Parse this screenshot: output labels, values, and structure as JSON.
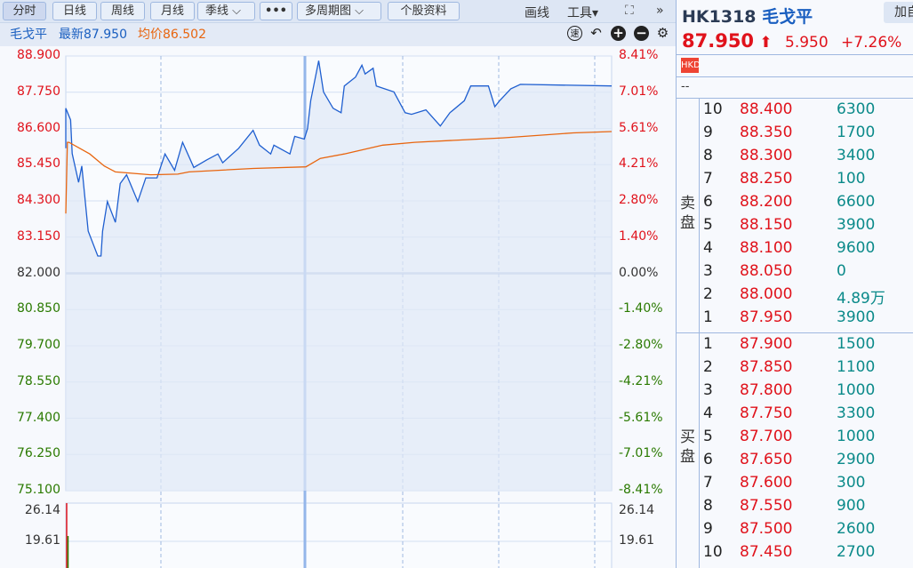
{
  "toolbar": {
    "tabs": [
      "分时",
      "日线",
      "周线",
      "月线",
      "季线",
      "•••",
      "多周期图",
      "个股资料"
    ],
    "draw": "画线",
    "tools": "工具▾",
    "fullscreen_icon": "expand-icon",
    "collapse_icon": "»"
  },
  "infobar": {
    "name": "毛戈平",
    "latest": "最新87.950",
    "avg": "均价86.502"
  },
  "stock": {
    "code": "HK1318",
    "name": "毛戈平",
    "add_btn": "加自",
    "price": "87.950",
    "arrow": "⬆",
    "change": "5.950",
    "pct": "+7.26%",
    "currency": "HKD",
    "misc": "--"
  },
  "chart": {
    "price_ticks": [
      "88.900",
      "87.750",
      "86.600",
      "85.450",
      "84.300",
      "83.150",
      "82.000",
      "80.850",
      "79.700",
      "78.550",
      "77.400",
      "76.250",
      "75.100"
    ],
    "pct_ticks": [
      "8.41%",
      "7.01%",
      "5.61%",
      "4.21%",
      "2.80%",
      "1.40%",
      "0.00%",
      "-1.40%",
      "-2.80%",
      "-4.21%",
      "-5.61%",
      "-7.01%",
      "-8.41%"
    ],
    "ylim": [
      75.1,
      88.9
    ],
    "prev_close": 82.0,
    "price_line": [
      [
        0,
        85.97
      ],
      [
        0,
        87.24
      ],
      [
        3,
        86.87
      ],
      [
        4,
        85.8
      ],
      [
        8,
        84.89
      ],
      [
        10,
        85.41
      ],
      [
        14,
        83.34
      ],
      [
        20,
        82.55
      ],
      [
        22,
        82.55
      ],
      [
        23,
        83.34
      ],
      [
        26,
        84.28
      ],
      [
        31,
        83.62
      ],
      [
        34,
        84.85
      ],
      [
        38,
        85.13
      ],
      [
        45,
        84.28
      ],
      [
        50,
        85.03
      ],
      [
        57,
        85.03
      ],
      [
        62,
        85.79
      ],
      [
        68,
        85.27
      ],
      [
        73,
        86.16
      ],
      [
        80,
        85.36
      ],
      [
        88,
        85.6
      ],
      [
        95,
        85.79
      ],
      [
        98,
        85.51
      ],
      [
        108,
        85.97
      ],
      [
        117,
        86.54
      ],
      [
        121,
        86.07
      ],
      [
        128,
        85.79
      ],
      [
        130,
        86.07
      ],
      [
        140,
        85.79
      ],
      [
        143,
        86.35
      ],
      [
        149,
        86.26
      ],
      [
        151,
        86.59
      ],
      [
        153,
        87.48
      ],
      [
        158,
        88.75
      ],
      [
        161,
        87.76
      ],
      [
        167,
        87.24
      ],
      [
        172,
        87.1
      ],
      [
        174,
        87.95
      ],
      [
        181,
        88.23
      ],
      [
        185,
        88.61
      ],
      [
        187,
        88.33
      ],
      [
        192,
        88.51
      ],
      [
        194,
        87.95
      ],
      [
        205,
        87.76
      ],
      [
        212,
        87.1
      ],
      [
        216,
        87.05
      ],
      [
        225,
        87.19
      ],
      [
        234,
        86.68
      ],
      [
        240,
        87.1
      ],
      [
        249,
        87.48
      ],
      [
        253,
        87.95
      ],
      [
        264,
        87.95
      ],
      [
        268,
        87.29
      ],
      [
        271,
        87.48
      ],
      [
        278,
        87.86
      ],
      [
        284,
        88.0
      ],
      [
        341,
        87.95
      ]
    ],
    "avg_line": [
      [
        0,
        83.9
      ],
      [
        1,
        86.16
      ],
      [
        2,
        86.16
      ],
      [
        15,
        85.79
      ],
      [
        24,
        85.41
      ],
      [
        31,
        85.22
      ],
      [
        53,
        85.13
      ],
      [
        70,
        85.15
      ],
      [
        77,
        85.22
      ],
      [
        117,
        85.33
      ],
      [
        150,
        85.38
      ],
      [
        159,
        85.65
      ],
      [
        174,
        85.79
      ],
      [
        198,
        86.07
      ],
      [
        218,
        86.16
      ],
      [
        273,
        86.3
      ],
      [
        317,
        86.46
      ],
      [
        341,
        86.5
      ]
    ],
    "vol_ticks": [
      "26.14",
      "19.61"
    ],
    "colors": {
      "price": "#1f5fd0",
      "avg": "#e8650f",
      "up": "#e0121b",
      "down": "#2a7a00"
    }
  },
  "orderbook": {
    "sell_label": [
      "卖",
      "盘"
    ],
    "buy_label": [
      "买",
      "盘"
    ],
    "asks": [
      [
        "10",
        "88.400",
        "6300"
      ],
      [
        "9",
        "88.350",
        "1700"
      ],
      [
        "8",
        "88.300",
        "3400"
      ],
      [
        "7",
        "88.250",
        "100"
      ],
      [
        "6",
        "88.200",
        "6600"
      ],
      [
        "5",
        "88.150",
        "3900"
      ],
      [
        "4",
        "88.100",
        "9600"
      ],
      [
        "3",
        "88.050",
        "0"
      ],
      [
        "2",
        "88.000",
        "4.89万"
      ],
      [
        "1",
        "87.950",
        "3900"
      ]
    ],
    "bids": [
      [
        "1",
        "87.900",
        "1500"
      ],
      [
        "2",
        "87.850",
        "1100"
      ],
      [
        "3",
        "87.800",
        "1000"
      ],
      [
        "4",
        "87.750",
        "3300"
      ],
      [
        "5",
        "87.700",
        "1000"
      ],
      [
        "6",
        "87.650",
        "2900"
      ],
      [
        "7",
        "87.600",
        "300"
      ],
      [
        "8",
        "87.550",
        "900"
      ],
      [
        "9",
        "87.500",
        "2600"
      ],
      [
        "10",
        "87.450",
        "2700"
      ]
    ]
  }
}
